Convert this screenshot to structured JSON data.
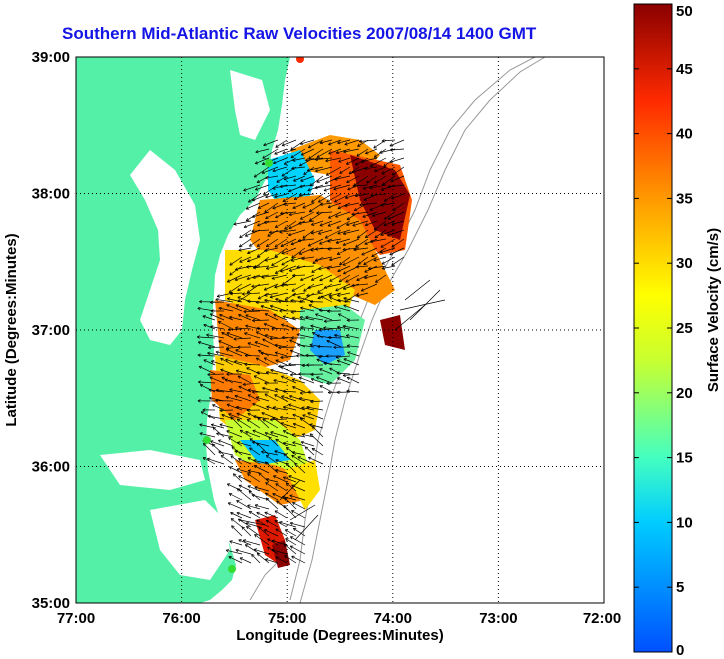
{
  "title": "Southern Mid-Atlantic Raw Velocities 2007/08/14 1400 GMT",
  "xlabel": "Longitude (Degrees:Minutes)",
  "ylabel": "Latitude (Degrees:Minutes)",
  "x_ticks": [
    "77:00",
    "76:00",
    "75:00",
    "74:00",
    "73:00",
    "72:00"
  ],
  "y_ticks": [
    "39:00",
    "38:00",
    "37:00",
    "36:00",
    "35:00"
  ],
  "colorbar": {
    "label": "Surface Velocity (cm/s)",
    "ticks": [
      "0",
      "5",
      "10",
      "15",
      "20",
      "25",
      "30",
      "35",
      "40",
      "45",
      "50"
    ],
    "range": [
      0,
      50
    ]
  },
  "colors": {
    "land": "#55f0a8",
    "water": "#ffffff",
    "title": "#1414e6",
    "station": "#33dd33"
  },
  "chart_data": {
    "type": "heatmap",
    "lon_range": [
      -77,
      -72
    ],
    "lat_range": [
      35,
      39
    ],
    "grid": true,
    "colorbar_placement": "right"
  }
}
